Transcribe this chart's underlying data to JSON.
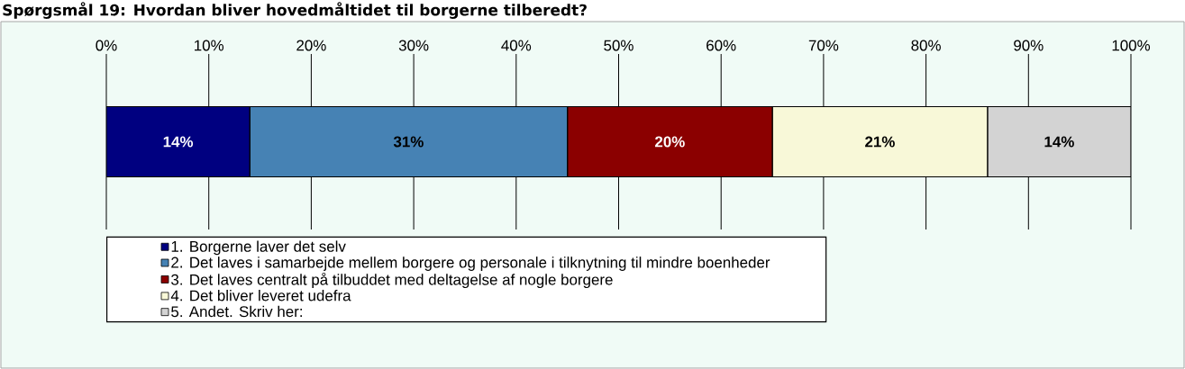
{
  "chart_data": {
    "type": "bar",
    "orientation": "horizontal",
    "stacked": true,
    "title": "Spørgsmål 19: Hvordan bliver hovedmåltidet til borgerne tilberedt?",
    "categories": [
      null
    ],
    "series": [
      {
        "name": "1. Borgerne laver det selv",
        "color": "#000080",
        "values": [
          14
        ],
        "value_labels": [
          "14%"
        ]
      },
      {
        "name": "2. Det laves i samarbejde mellem borgere og personale i tilknytning til mindre boenheder",
        "color": "#4682b4",
        "values": [
          31
        ],
        "value_labels": [
          "31%"
        ]
      },
      {
        "name": "3. Det laves centralt på tilbuddet med deltagelse af nogle borgere",
        "color": "#8b0000",
        "values": [
          20
        ],
        "value_labels": [
          "20%"
        ]
      },
      {
        "name": "4. Det bliver leveret udefra",
        "color": "#f8f8d8",
        "values": [
          21
        ],
        "value_labels": [
          "21%"
        ]
      },
      {
        "name": "5. Andet. Skriv her:",
        "color": "#d3d3d3",
        "values": [
          14
        ],
        "value_labels": [
          "14%"
        ]
      }
    ],
    "xlim": [
      0,
      100
    ],
    "xticks": [
      {
        "value": 0,
        "label": "0%"
      },
      {
        "value": 10,
        "label": "10%"
      },
      {
        "value": 20,
        "label": "20%"
      },
      {
        "value": 30,
        "label": "30%"
      },
      {
        "value": 40,
        "label": "40%"
      },
      {
        "value": 50,
        "label": "50%"
      },
      {
        "value": 60,
        "label": "60%"
      },
      {
        "value": 70,
        "label": "70%"
      },
      {
        "value": 80,
        "label": "80%"
      },
      {
        "value": 90,
        "label": "90%"
      },
      {
        "value": 100,
        "label": "100%"
      }
    ],
    "grid": "x",
    "legend": "bottom"
  }
}
